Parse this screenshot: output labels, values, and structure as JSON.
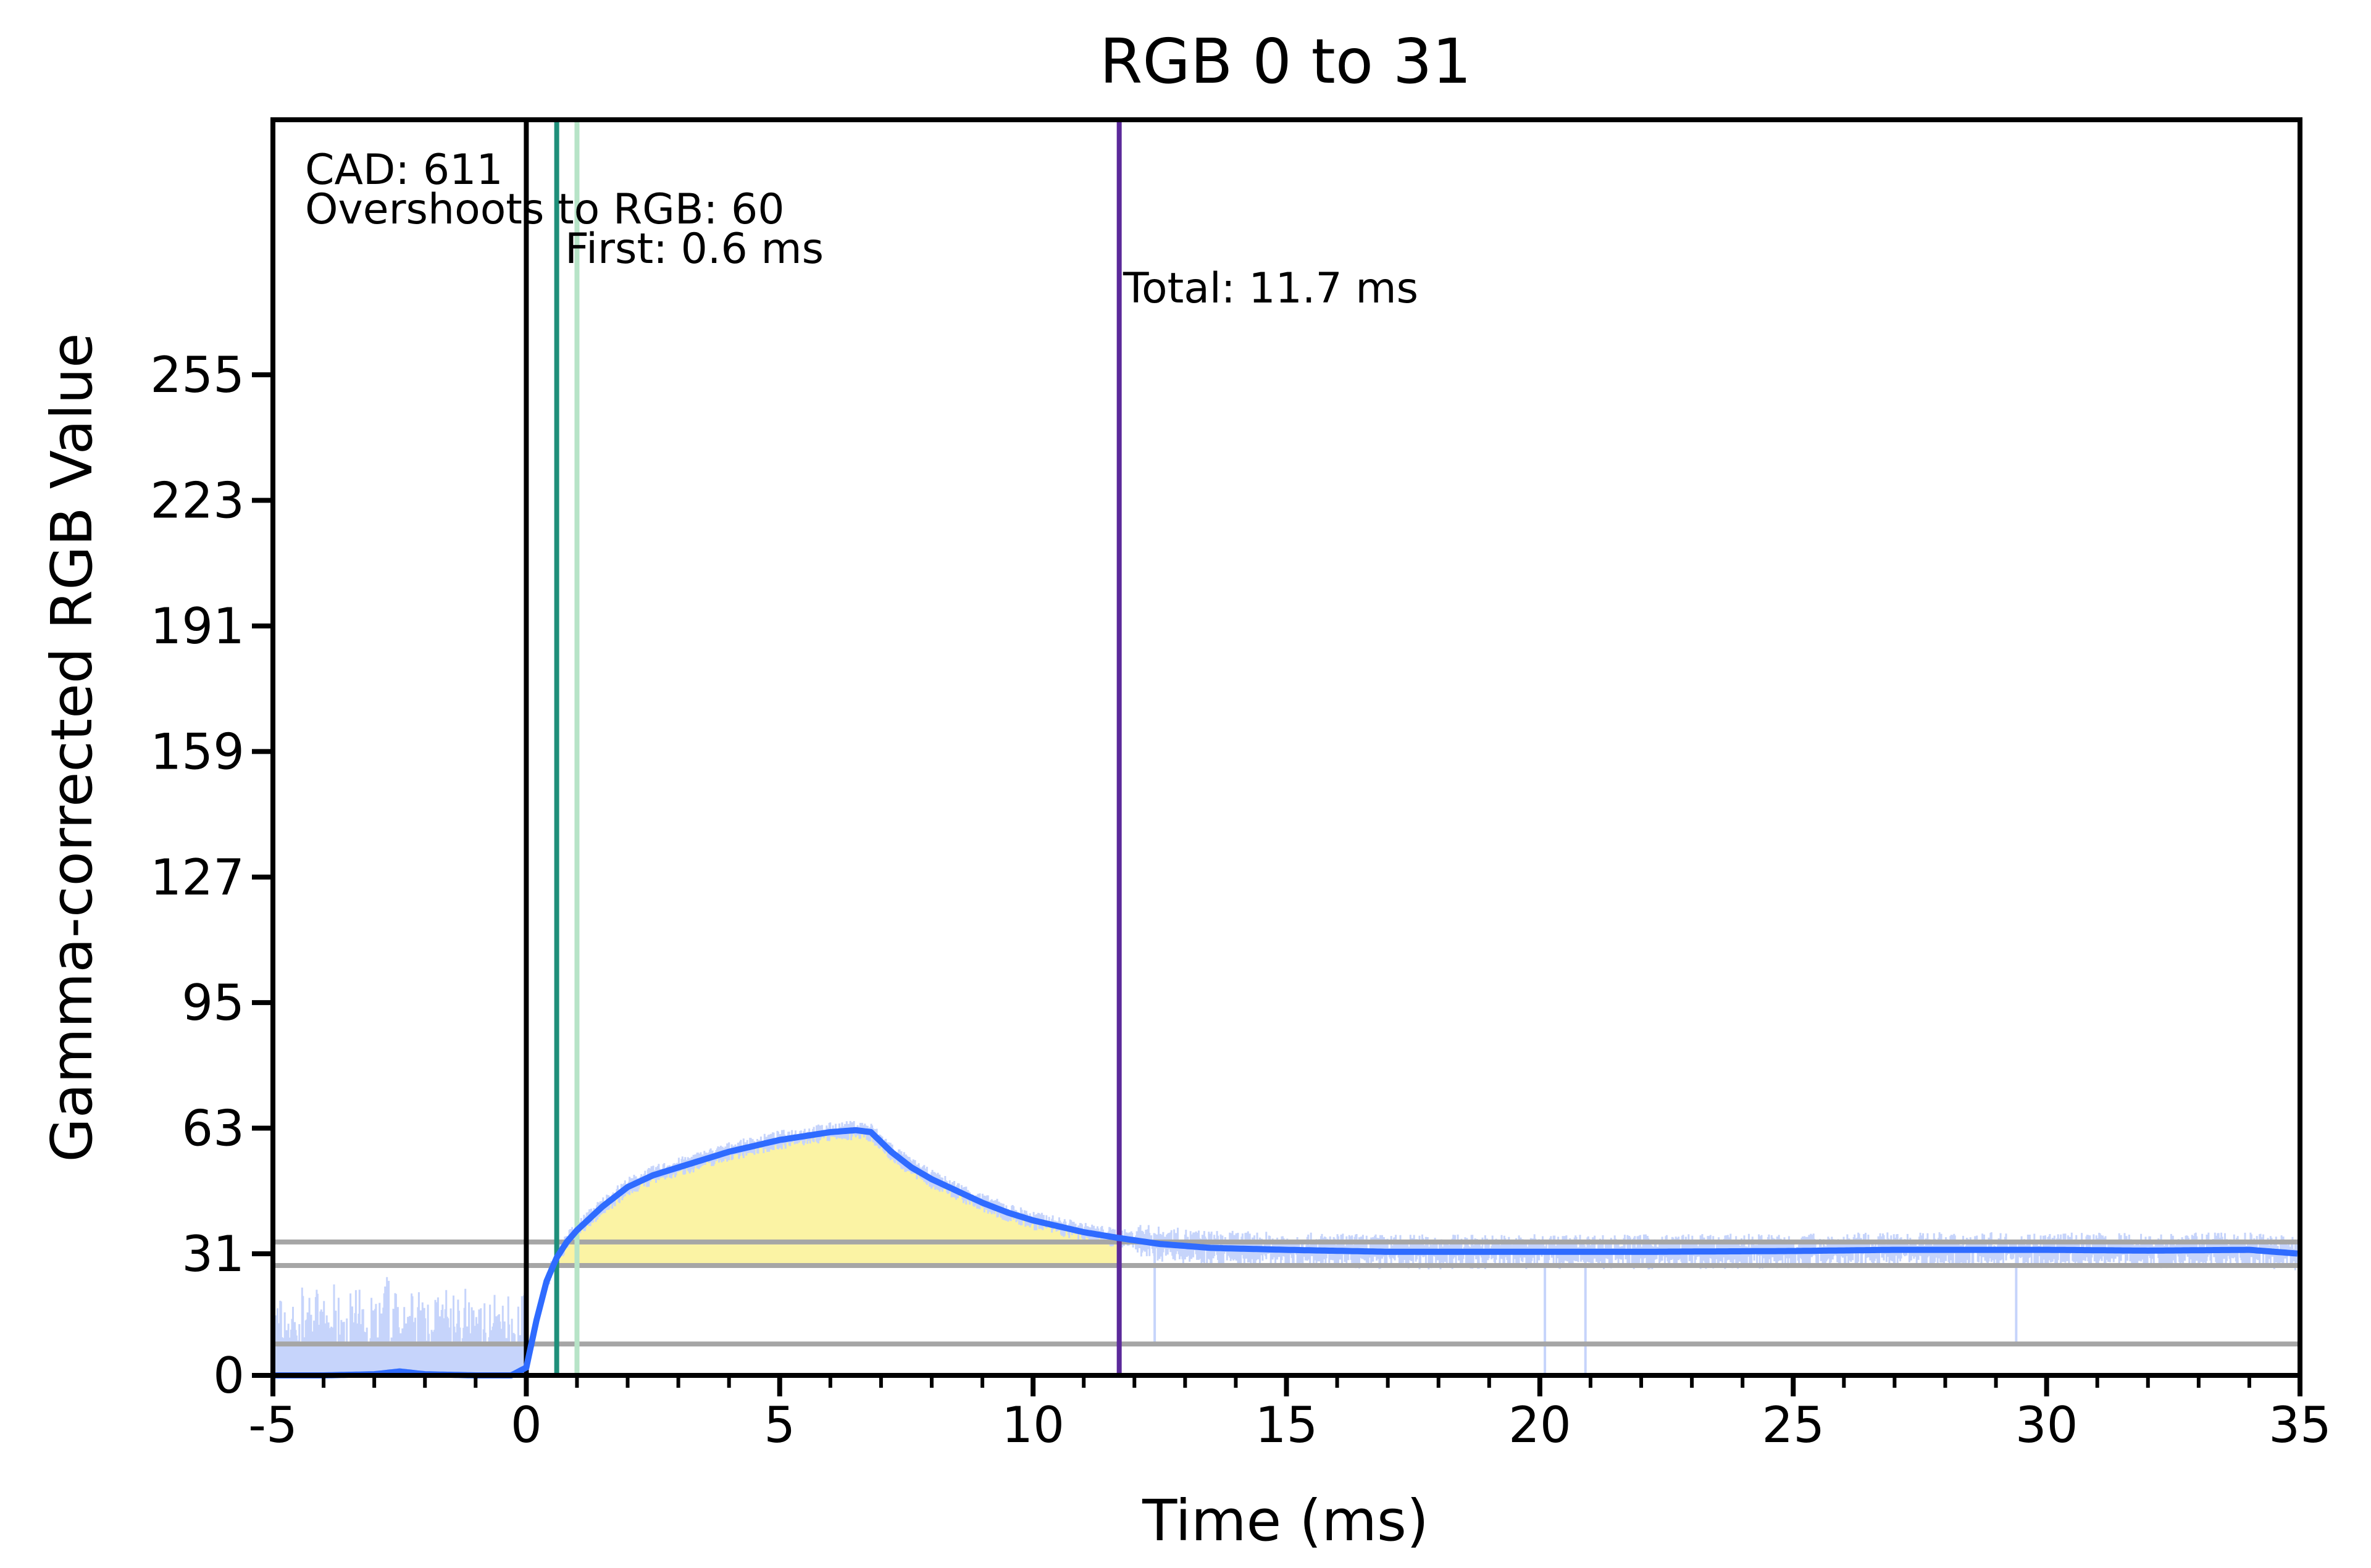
{
  "chart_data": {
    "type": "line",
    "title": "RGB 0 to 31",
    "xlabel": "Time (ms)",
    "ylabel": "Gamma-corrected RGB Value",
    "xlim": [
      -5,
      35
    ],
    "ylim": [
      0,
      320
    ],
    "x_ticks": [
      -5,
      0,
      5,
      10,
      15,
      20,
      25,
      30,
      35
    ],
    "y_ticks": [
      0,
      31,
      63,
      95,
      127,
      159,
      191,
      223,
      255
    ],
    "grid": false,
    "legend": "none",
    "annotations": [
      {
        "text": "CAD: 611"
      },
      {
        "text": "Overshoots to RGB: 60"
      },
      {
        "text": "First: 0.6 ms"
      },
      {
        "text": "Total: 11.7 ms"
      }
    ],
    "vertical_lines": [
      {
        "x": 0.0,
        "color": "#000000"
      },
      {
        "x": 0.6,
        "color": "#1f8f7a"
      },
      {
        "x": 1.0,
        "color": "#b7e4c7"
      },
      {
        "x": 11.7,
        "color": "#5b2a9a"
      }
    ],
    "horizontal_lines": [
      {
        "y": 8,
        "color": "#a6a6a6"
      },
      {
        "y": 28,
        "color": "#a6a6a6"
      },
      {
        "y": 34,
        "color": "#a6a6a6"
      }
    ],
    "series": [
      {
        "color": "#2f6bff",
        "x": [
          -5,
          -4,
          -3,
          -2.5,
          -2,
          -1,
          -0.3,
          0,
          0.2,
          0.4,
          0.6,
          0.8,
          1,
          1.5,
          2,
          2.5,
          3,
          3.5,
          4,
          4.5,
          5,
          5.5,
          6,
          6.5,
          6.8,
          7.2,
          7.6,
          8,
          8.5,
          9,
          9.5,
          10,
          10.5,
          11,
          11.7,
          12.5,
          13.5,
          15,
          17,
          20,
          22,
          25,
          27,
          30,
          32,
          34,
          35
        ],
        "y": [
          0,
          0,
          0.3,
          1,
          0.3,
          0,
          0,
          2,
          14,
          24,
          30,
          34,
          37,
          43,
          48,
          51,
          53,
          55,
          57,
          58.5,
          60,
          61,
          62,
          62.5,
          62,
          57,
          53,
          50,
          47,
          44,
          41.5,
          39.5,
          38,
          36.5,
          35,
          33.5,
          32.5,
          32,
          31.5,
          31.5,
          31.5,
          31.7,
          32,
          32,
          31.8,
          32,
          31
        ]
      }
    ],
    "noisy_band_color": "#c6d4fb",
    "fill_between_color": "#fbf3a4"
  }
}
